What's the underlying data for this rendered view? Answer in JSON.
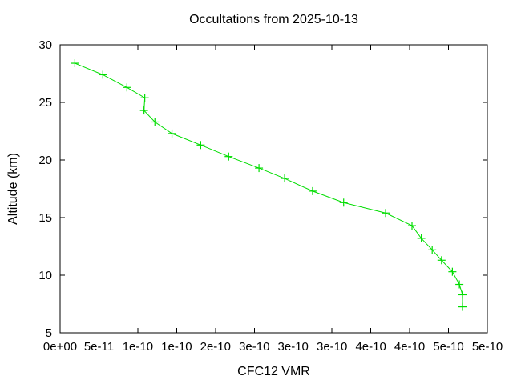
{
  "chart_data": {
    "type": "line",
    "title": "Occultations from 2025-10-13",
    "xlabel": "CFC12 VMR",
    "ylabel": "Altitude (km)",
    "xlim": [
      0,
      5.5e-10
    ],
    "ylim": [
      5,
      30
    ],
    "grid": false,
    "legend": "none",
    "line_color": "#00dd00",
    "marker": "plus-cross",
    "marker_size": 10,
    "x_ticks": [
      0,
      5e-11,
      1e-10,
      1.5e-10,
      2e-10,
      2.5e-10,
      3e-10,
      3.5e-10,
      4e-10,
      4.5e-10,
      5e-10,
      5.5e-10
    ],
    "x_tick_labels": [
      "0e+00",
      "5e-11",
      "1e-10",
      "1e-10",
      "2e-10",
      "3e-10",
      "3e-10",
      "3e-10",
      "4e-10",
      "4e-10",
      "5e-10",
      "5e-10"
    ],
    "y_ticks": [
      5,
      10,
      15,
      20,
      25,
      30
    ],
    "y_tick_labels": [
      "5",
      "10",
      "15",
      "20",
      "25",
      "30"
    ],
    "series": [
      {
        "name": "CFC12 occultation profile",
        "points": [
          [
            1.9e-11,
            28.4
          ],
          [
            5.5e-11,
            27.4
          ],
          [
            8.6e-11,
            26.3
          ],
          [
            1.09e-10,
            25.4
          ],
          [
            1.08e-10,
            24.3
          ],
          [
            1.22e-10,
            23.3
          ],
          [
            1.44e-10,
            22.3
          ],
          [
            1.81e-10,
            21.3
          ],
          [
            2.17e-10,
            20.3
          ],
          [
            2.56e-10,
            19.3
          ],
          [
            2.89e-10,
            18.4
          ],
          [
            3.25e-10,
            17.3
          ],
          [
            3.65e-10,
            16.3
          ],
          [
            4.19e-10,
            15.4
          ],
          [
            4.53e-10,
            14.3
          ],
          [
            4.65e-10,
            13.2
          ],
          [
            4.79e-10,
            12.2
          ],
          [
            4.91e-10,
            11.3
          ],
          [
            5.05e-10,
            10.3
          ],
          [
            5.14e-10,
            9.2
          ],
          [
            5.18e-10,
            8.3
          ],
          [
            5.18e-10,
            7.25
          ]
        ]
      }
    ]
  }
}
